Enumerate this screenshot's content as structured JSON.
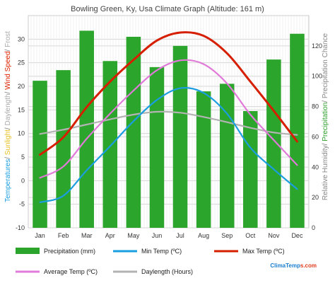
{
  "chart_data": {
    "type": "bar",
    "title": "Bowling Green, Ky, Usa Climate Graph (Altitude: 161 m)",
    "categories": [
      "Jan",
      "Feb",
      "Mar",
      "Apr",
      "May",
      "Jun",
      "Jul",
      "Aug",
      "Sep",
      "Oct",
      "Nov",
      "Dec"
    ],
    "left_axis": {
      "ylim": [
        -10,
        35
      ],
      "ticks": [
        -10,
        -5,
        0,
        5,
        10,
        15,
        20,
        25,
        30
      ],
      "title_parts": [
        {
          "text": "Temperatures",
          "color": "#1a9ee0"
        },
        {
          "text": "/ ",
          "color": "#777777"
        },
        {
          "text": "Sunlight",
          "color": "#e8c020"
        },
        {
          "text": "/ ",
          "color": "#777777"
        },
        {
          "text": "Daylength",
          "color": "#aaaaaa"
        },
        {
          "text": "/ ",
          "color": "#777777"
        },
        {
          "text": "Wind Speed",
          "color": "#dd2200"
        },
        {
          "text": "/ ",
          "color": "#777777"
        },
        {
          "text": "Frost",
          "color": "#aaaaaa"
        }
      ]
    },
    "right_axis": {
      "ylim": [
        0,
        140
      ],
      "ticks": [
        0,
        20,
        40,
        60,
        80,
        100,
        120
      ],
      "title_parts": [
        {
          "text": "Relative Humidity",
          "color": "#888888"
        },
        {
          "text": "/ ",
          "color": "#777777"
        },
        {
          "text": "Precipitation",
          "color": "#2ba02b"
        },
        {
          "text": "/ ",
          "color": "#777777"
        },
        {
          "text": "Precipitation Chance",
          "color": "#888888"
        }
      ]
    },
    "series": [
      {
        "name": "Precipitation (mm)",
        "kind": "bar",
        "axis": "right",
        "color": "#2ba52b",
        "values": [
          97,
          104,
          130,
          110,
          126,
          106,
          120,
          90,
          95,
          77,
          111,
          128
        ]
      },
      {
        "name": "Min Temp (ºC)",
        "kind": "line",
        "axis": "left",
        "color": "#1a9ee0",
        "values": [
          -4.6,
          -3.2,
          2.2,
          7.3,
          12.6,
          17.1,
          19.6,
          18.6,
          14.2,
          7.0,
          2.4,
          -1.8
        ]
      },
      {
        "name": "Max Temp (ºC)",
        "kind": "line",
        "axis": "left",
        "color": "#d61f00",
        "values": [
          5.5,
          9.2,
          15.6,
          21.0,
          25.6,
          29.7,
          31.4,
          30.7,
          27.0,
          21.0,
          14.8,
          8.3
        ]
      },
      {
        "name": "Average Temp (ºC)",
        "kind": "line",
        "axis": "left",
        "color": "#e07ad8",
        "values": [
          0.6,
          3.0,
          8.9,
          14.2,
          19.1,
          23.4,
          25.5,
          24.7,
          20.6,
          14.0,
          8.6,
          3.3
        ]
      },
      {
        "name": "Daylength (Hours)",
        "kind": "line",
        "axis": "left",
        "color": "#b3b3b3",
        "values": [
          9.9,
          10.8,
          11.9,
          13.0,
          14.0,
          14.6,
          14.4,
          13.5,
          12.4,
          11.2,
          10.2,
          9.7
        ]
      }
    ],
    "grid": true,
    "legend_position": "bottom",
    "brand": "ClimaTemps.com"
  }
}
